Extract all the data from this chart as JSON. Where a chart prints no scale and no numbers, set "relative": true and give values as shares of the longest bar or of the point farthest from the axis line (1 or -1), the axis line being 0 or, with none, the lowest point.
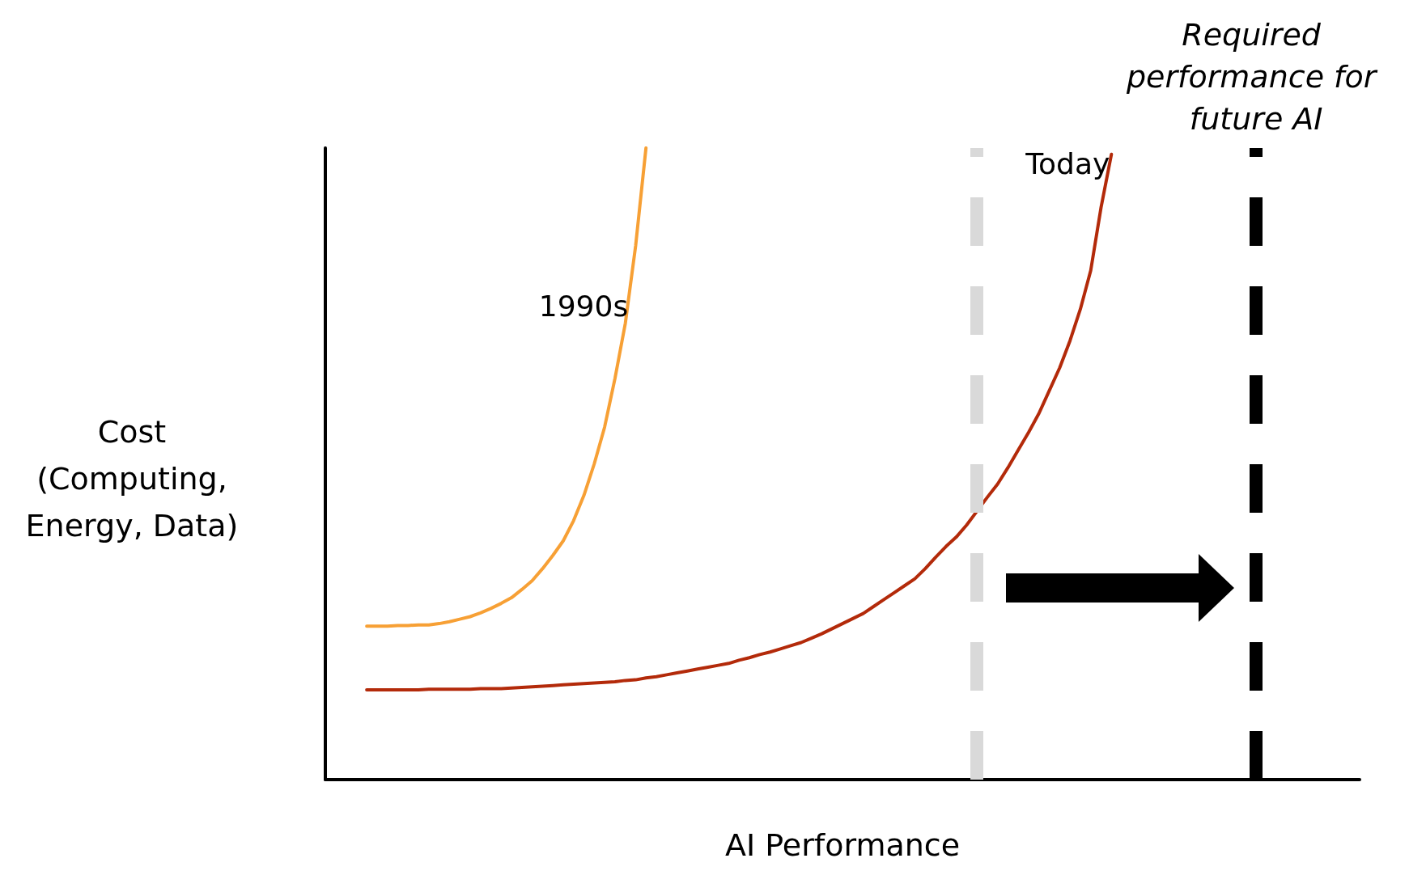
{
  "chart_data": {
    "type": "line",
    "relative": true,
    "xlabel": "AI Performance",
    "ylabel": "Cost (Computing, Energy, Data)",
    "tick_labels": false,
    "marker": "none",
    "categories": [
      null,
      null,
      null,
      null,
      null,
      null,
      null,
      null,
      null,
      null,
      null,
      null,
      null,
      null,
      null,
      null,
      null,
      null,
      null,
      null,
      null,
      null,
      null,
      null,
      null,
      null,
      null,
      null,
      null,
      null,
      null,
      null,
      null,
      null,
      null,
      null,
      null,
      null,
      null,
      null,
      null,
      null,
      null,
      null,
      null,
      null,
      null,
      null,
      null,
      null,
      null,
      null,
      null,
      null,
      null,
      null,
      null,
      null,
      null,
      null,
      null,
      null,
      null,
      null,
      null,
      null,
      null,
      null,
      null,
      null,
      null,
      null,
      null,
      null,
      null,
      null,
      null,
      null,
      null,
      null,
      null,
      null,
      null,
      null,
      null,
      null,
      null,
      null,
      null,
      null,
      null,
      null,
      null,
      null,
      null,
      null,
      null,
      null,
      null,
      null,
      null
    ],
    "series": [
      {
        "name": "1990s",
        "color": "#f7a035",
        "values": [
          null,
          null,
          null,
          null,
          0.243,
          0.243,
          0.243,
          0.244,
          0.244,
          0.245,
          0.245,
          0.247,
          0.25,
          0.254,
          0.258,
          0.264,
          0.271,
          0.279,
          0.288,
          0.301,
          0.315,
          0.334,
          0.355,
          0.378,
          0.41,
          0.45,
          0.5,
          0.558,
          0.635,
          0.722,
          0.845,
          1,
          null,
          null,
          null,
          null,
          null,
          null,
          null,
          null,
          null,
          null,
          null,
          null,
          null,
          null,
          null,
          null,
          null,
          null,
          null,
          null,
          null,
          null,
          null,
          null,
          null,
          null,
          null,
          null,
          null,
          null,
          null,
          null,
          null,
          null,
          null,
          null,
          null,
          null,
          null,
          null,
          null,
          null,
          null,
          null,
          null,
          null,
          null,
          null,
          null,
          null,
          null,
          null,
          null,
          null,
          null,
          null,
          null,
          null,
          null,
          null,
          null,
          null,
          null,
          null,
          null,
          null,
          null,
          null,
          null
        ]
      },
      {
        "name": "Today",
        "color": "#b32a0a",
        "values": [
          null,
          null,
          null,
          null,
          0.142,
          0.142,
          0.142,
          0.142,
          0.142,
          0.142,
          0.143,
          0.143,
          0.143,
          0.143,
          0.143,
          0.144,
          0.144,
          0.144,
          0.145,
          0.146,
          0.147,
          0.148,
          0.149,
          0.15,
          0.151,
          0.152,
          0.153,
          0.154,
          0.155,
          0.157,
          0.158,
          0.161,
          0.163,
          0.166,
          0.169,
          0.172,
          0.175,
          0.178,
          0.181,
          0.184,
          0.189,
          0.193,
          0.198,
          0.202,
          0.207,
          0.212,
          0.217,
          0.224,
          0.231,
          0.239,
          0.247,
          0.255,
          0.263,
          0.274,
          0.285,
          0.296,
          0.307,
          0.318,
          0.334,
          0.352,
          0.369,
          0.384,
          0.403,
          0.425,
          0.447,
          0.468,
          0.494,
          0.522,
          0.55,
          0.58,
          0.616,
          0.652,
          0.695,
          0.745,
          0.806,
          0.906,
          0.99,
          null,
          null,
          null,
          null,
          null,
          null,
          null,
          null,
          null,
          null,
          null,
          null,
          null,
          null,
          null,
          null,
          null,
          null,
          null,
          null,
          null,
          null,
          null,
          null
        ]
      }
    ],
    "annotations": [
      "Required performance for future AI"
    ]
  }
}
